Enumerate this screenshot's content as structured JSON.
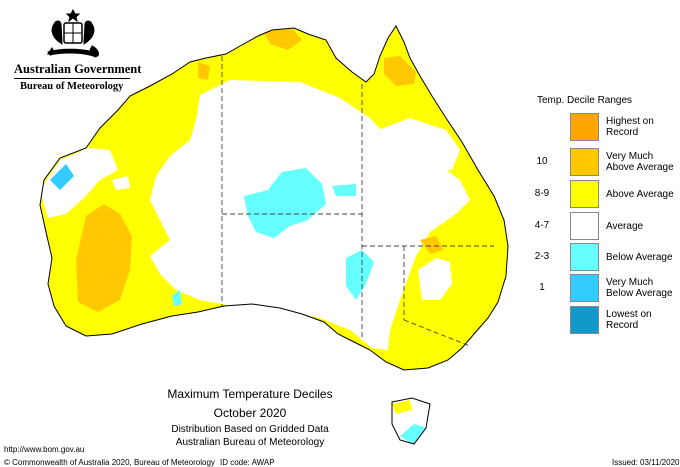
{
  "header": {
    "org_line1": "Australian Government",
    "org_line2": "Bureau of Meteorology",
    "crest_icon": "commonwealth-coat-of-arms-icon"
  },
  "map": {
    "title": "Maximum Temperature Deciles",
    "period": "October 2020",
    "subtitle1": "Distribution Based on Gridded Data",
    "subtitle2": "Australian Bureau of Meteorology",
    "region": "Australia"
  },
  "legend": {
    "title": "Temp. Decile Ranges",
    "items": [
      {
        "code": "",
        "label": "Highest on Record",
        "color": "#FFA500"
      },
      {
        "code": "10",
        "label": "Very Much Above Average",
        "color": "#FFC800"
      },
      {
        "code": "8-9",
        "label": "Above Average",
        "color": "#FFFF00"
      },
      {
        "code": "4-7",
        "label": "Average",
        "color": "#FFFFFF"
      },
      {
        "code": "2-3",
        "label": "Below Average",
        "color": "#66FFFF"
      },
      {
        "code": "1",
        "label": "Very Much Below Average",
        "color": "#33CCFF"
      },
      {
        "code": "",
        "label": "Lowest on Record",
        "color": "#1199CC"
      }
    ]
  },
  "footer": {
    "url": "http://www.bom.gov.au",
    "copyright": "© Commonwealth of Australia 2020, Bureau of Meteorology",
    "id_code": "ID code: AWAP",
    "issued": "Issued: 03/11/2020"
  }
}
